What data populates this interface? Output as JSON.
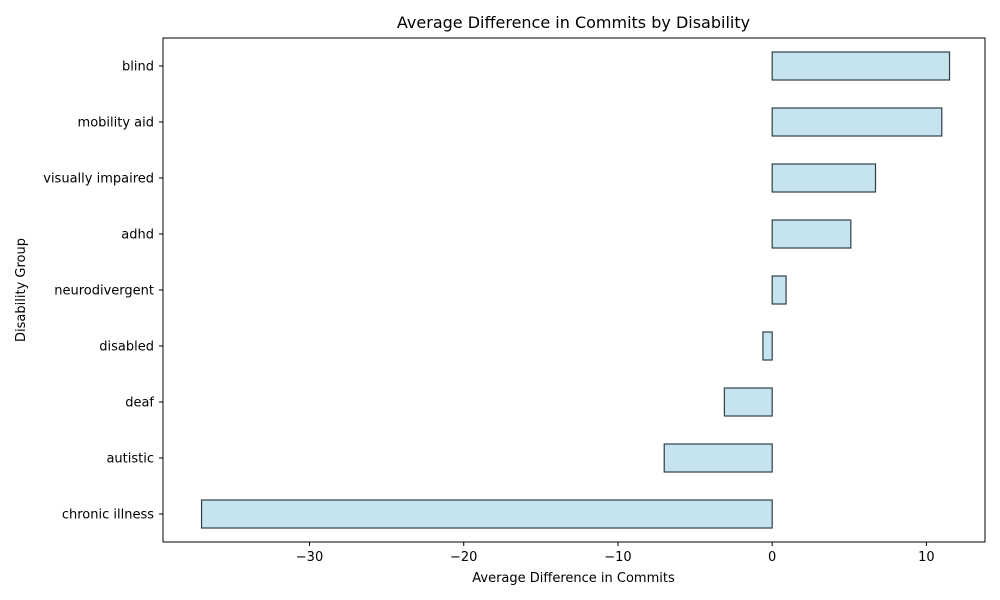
{
  "chart_data": {
    "type": "bar",
    "orientation": "horizontal",
    "title": "Average Difference in Commits by Disability",
    "xlabel": "Average Difference in Commits",
    "ylabel": "Disability Group",
    "categories": [
      "blind",
      "mobility aid",
      "visually impaired",
      "adhd",
      "neurodivergent",
      "disabled",
      "deaf",
      "autistic",
      "chronic illness"
    ],
    "values": [
      11.5,
      11.0,
      6.7,
      5.1,
      0.9,
      -0.6,
      -3.1,
      -7.0,
      -37.0
    ],
    "xlim": [
      -39.5,
      13.8
    ],
    "xticks": [
      -30,
      -20,
      -10,
      0,
      10
    ],
    "xtick_labels": [
      "−30",
      "−20",
      "−10",
      "0",
      "10"
    ],
    "grid": false,
    "bar_color": "#add8e6",
    "edge_color": "#2f3f4a"
  }
}
